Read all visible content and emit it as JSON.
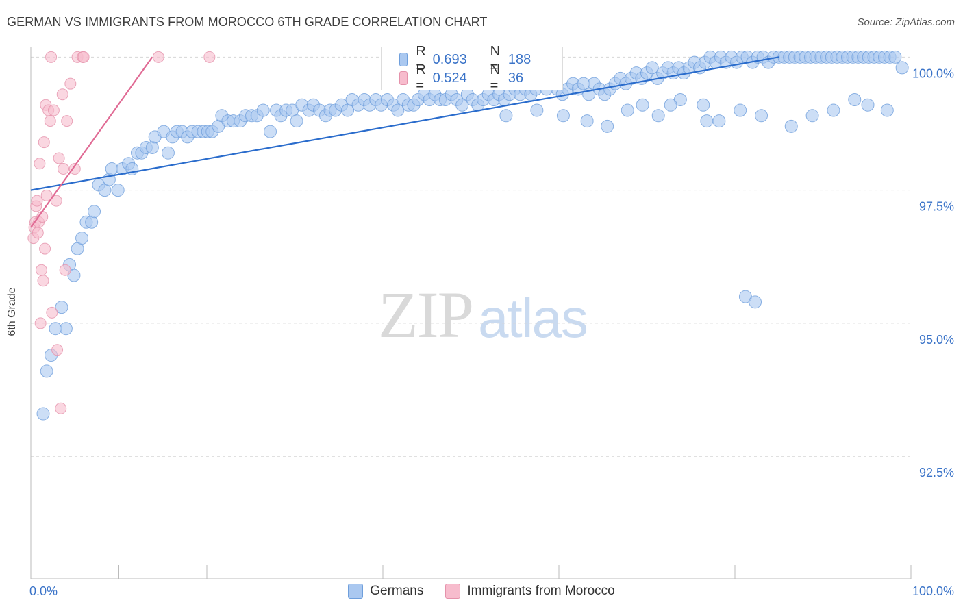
{
  "header": {
    "title": "GERMAN VS IMMIGRANTS FROM MOROCCO 6TH GRADE CORRELATION CHART",
    "source": "Source: ZipAtlas.com"
  },
  "watermark": {
    "part1": "ZIP",
    "part2": "atlas"
  },
  "legend": {
    "r_label": "R =",
    "n_label": "N =",
    "rows": [
      {
        "r": "0.693",
        "n": "188",
        "fill": "#aac8f0",
        "stroke": "#6f9fdc"
      },
      {
        "r": "0.524",
        "n": "36",
        "fill": "#f7bccd",
        "stroke": "#e592ab"
      }
    ]
  },
  "chart_data": {
    "type": "scatter",
    "title": "GERMAN VS IMMIGRANTS FROM MOROCCO 6TH GRADE CORRELATION CHART",
    "xlabel": "",
    "ylabel": "6th Grade",
    "xlim": [
      0,
      100
    ],
    "ylim": [
      90.2,
      100.3
    ],
    "x_tick_labels": [
      "0.0%",
      "100.0%"
    ],
    "y_ticks": [
      92.5,
      95.0,
      97.5,
      100.0
    ],
    "y_tick_labels": [
      "92.5%",
      "95.0%",
      "97.5%",
      "100.0%"
    ],
    "grid": true,
    "legend_position": "top-center",
    "series": [
      {
        "name": "Germans",
        "color": "#6f9fdc",
        "fill": "#aac8f0",
        "line_color": "#2a6ccc",
        "trend": [
          [
            0,
            97.5
          ],
          [
            85,
            100.0
          ]
        ],
        "points": [
          [
            1.4,
            93.3
          ],
          [
            1.8,
            94.1
          ],
          [
            2.3,
            94.4
          ],
          [
            2.8,
            94.9
          ],
          [
            3.5,
            95.3
          ],
          [
            4.0,
            94.9
          ],
          [
            4.4,
            96.1
          ],
          [
            4.9,
            95.9
          ],
          [
            5.3,
            96.4
          ],
          [
            5.8,
            96.6
          ],
          [
            6.3,
            96.9
          ],
          [
            6.9,
            96.9
          ],
          [
            7.2,
            97.1
          ],
          [
            7.7,
            97.6
          ],
          [
            8.4,
            97.5
          ],
          [
            8.9,
            97.7
          ],
          [
            9.2,
            97.9
          ],
          [
            9.9,
            97.5
          ],
          [
            10.4,
            97.9
          ],
          [
            11.1,
            98.0
          ],
          [
            11.5,
            97.9
          ],
          [
            12.1,
            98.2
          ],
          [
            12.6,
            98.2
          ],
          [
            13.1,
            98.3
          ],
          [
            13.8,
            98.3
          ],
          [
            14.1,
            98.5
          ],
          [
            15.1,
            98.6
          ],
          [
            15.6,
            98.2
          ],
          [
            16.1,
            98.5
          ],
          [
            16.6,
            98.6
          ],
          [
            17.2,
            98.6
          ],
          [
            17.8,
            98.5
          ],
          [
            18.3,
            98.6
          ],
          [
            19.0,
            98.6
          ],
          [
            19.6,
            98.6
          ],
          [
            20.1,
            98.6
          ],
          [
            20.6,
            98.6
          ],
          [
            21.3,
            98.7
          ],
          [
            21.7,
            98.9
          ],
          [
            22.4,
            98.8
          ],
          [
            23.0,
            98.8
          ],
          [
            23.8,
            98.8
          ],
          [
            24.4,
            98.9
          ],
          [
            25.1,
            98.9
          ],
          [
            25.7,
            98.9
          ],
          [
            26.4,
            99.0
          ],
          [
            27.2,
            98.6
          ],
          [
            27.9,
            99.0
          ],
          [
            28.4,
            98.9
          ],
          [
            29.0,
            99.0
          ],
          [
            29.7,
            99.0
          ],
          [
            30.2,
            98.8
          ],
          [
            30.8,
            99.1
          ],
          [
            31.6,
            99.0
          ],
          [
            32.1,
            99.1
          ],
          [
            32.8,
            99.0
          ],
          [
            33.5,
            98.9
          ],
          [
            34.0,
            99.0
          ],
          [
            34.6,
            99.0
          ],
          [
            35.3,
            99.1
          ],
          [
            36.0,
            99.0
          ],
          [
            36.5,
            99.2
          ],
          [
            37.2,
            99.1
          ],
          [
            37.9,
            99.2
          ],
          [
            38.5,
            99.1
          ],
          [
            39.2,
            99.2
          ],
          [
            39.8,
            99.1
          ],
          [
            40.5,
            99.2
          ],
          [
            41.2,
            99.1
          ],
          [
            41.7,
            99.0
          ],
          [
            42.3,
            99.2
          ],
          [
            42.9,
            99.1
          ],
          [
            43.5,
            99.1
          ],
          [
            44.0,
            99.2
          ],
          [
            44.7,
            99.3
          ],
          [
            45.3,
            99.2
          ],
          [
            45.9,
            99.3
          ],
          [
            46.5,
            99.2
          ],
          [
            47.1,
            99.2
          ],
          [
            47.8,
            99.3
          ],
          [
            48.4,
            99.2
          ],
          [
            49.0,
            99.1
          ],
          [
            49.6,
            99.3
          ],
          [
            50.2,
            99.2
          ],
          [
            50.8,
            99.1
          ],
          [
            51.4,
            99.2
          ],
          [
            52.0,
            99.3
          ],
          [
            52.6,
            99.2
          ],
          [
            53.2,
            99.3
          ],
          [
            53.8,
            99.2
          ],
          [
            54.4,
            99.3
          ],
          [
            55.0,
            99.4
          ],
          [
            55.6,
            99.3
          ],
          [
            56.2,
            99.4
          ],
          [
            56.8,
            99.3
          ],
          [
            57.4,
            99.4
          ],
          [
            58.0,
            99.5
          ],
          [
            58.6,
            99.4
          ],
          [
            59.2,
            99.5
          ],
          [
            59.8,
            99.4
          ],
          [
            60.4,
            99.3
          ],
          [
            61.0,
            99.4
          ],
          [
            61.6,
            99.5
          ],
          [
            62.2,
            99.4
          ],
          [
            62.8,
            99.5
          ],
          [
            63.4,
            99.3
          ],
          [
            64.0,
            99.5
          ],
          [
            64.6,
            99.4
          ],
          [
            65.2,
            99.3
          ],
          [
            65.8,
            99.4
          ],
          [
            66.4,
            99.5
          ],
          [
            67.0,
            99.6
          ],
          [
            67.6,
            99.5
          ],
          [
            68.2,
            99.6
          ],
          [
            68.8,
            99.7
          ],
          [
            69.4,
            99.6
          ],
          [
            70.0,
            99.7
          ],
          [
            70.6,
            99.8
          ],
          [
            71.2,
            99.6
          ],
          [
            71.8,
            99.7
          ],
          [
            72.4,
            99.8
          ],
          [
            73.0,
            99.7
          ],
          [
            73.6,
            99.8
          ],
          [
            74.2,
            99.7
          ],
          [
            74.8,
            99.8
          ],
          [
            75.4,
            99.9
          ],
          [
            76.0,
            99.8
          ],
          [
            76.6,
            99.9
          ],
          [
            77.2,
            100.0
          ],
          [
            77.8,
            99.9
          ],
          [
            78.4,
            100.0
          ],
          [
            79.0,
            99.9
          ],
          [
            79.6,
            100.0
          ],
          [
            80.2,
            99.9
          ],
          [
            80.8,
            100.0
          ],
          [
            81.4,
            100.0
          ],
          [
            82.0,
            99.9
          ],
          [
            82.6,
            100.0
          ],
          [
            83.2,
            100.0
          ],
          [
            83.8,
            99.9
          ],
          [
            84.4,
            100.0
          ],
          [
            85.0,
            100.0
          ],
          [
            85.6,
            100.0
          ],
          [
            86.2,
            100.0
          ],
          [
            86.8,
            100.0
          ],
          [
            87.4,
            100.0
          ],
          [
            88.0,
            100.0
          ],
          [
            88.6,
            100.0
          ],
          [
            89.2,
            100.0
          ],
          [
            89.8,
            100.0
          ],
          [
            90.4,
            100.0
          ],
          [
            91.0,
            100.0
          ],
          [
            91.6,
            100.0
          ],
          [
            92.2,
            100.0
          ],
          [
            92.8,
            100.0
          ],
          [
            93.4,
            100.0
          ],
          [
            94.0,
            100.0
          ],
          [
            94.6,
            100.0
          ],
          [
            95.2,
            100.0
          ],
          [
            95.8,
            100.0
          ],
          [
            96.4,
            100.0
          ],
          [
            97.0,
            100.0
          ],
          [
            97.6,
            100.0
          ],
          [
            98.2,
            100.0
          ],
          [
            99.0,
            99.8
          ],
          [
            54.0,
            98.9
          ],
          [
            57.5,
            99.0
          ],
          [
            60.5,
            98.9
          ],
          [
            63.2,
            98.8
          ],
          [
            65.5,
            98.7
          ],
          [
            69.5,
            99.1
          ],
          [
            71.3,
            98.9
          ],
          [
            73.8,
            99.2
          ],
          [
            76.4,
            99.1
          ],
          [
            78.2,
            98.8
          ],
          [
            80.6,
            99.0
          ],
          [
            83.0,
            98.9
          ],
          [
            86.4,
            98.7
          ],
          [
            88.8,
            98.9
          ],
          [
            91.2,
            99.0
          ],
          [
            93.6,
            99.2
          ],
          [
            95.1,
            99.1
          ],
          [
            97.3,
            99.0
          ],
          [
            81.2,
            95.5
          ],
          [
            82.3,
            95.4
          ],
          [
            76.8,
            98.8
          ],
          [
            72.7,
            99.1
          ],
          [
            67.8,
            99.0
          ]
        ]
      },
      {
        "name": "Immigrants from Morocco",
        "color": "#e592ab",
        "fill": "#f7bccd",
        "line_color": "#e06a94",
        "trend": [
          [
            0,
            96.8
          ],
          [
            13.8,
            100.0
          ]
        ],
        "points": [
          [
            0.3,
            96.6
          ],
          [
            0.4,
            96.8
          ],
          [
            0.5,
            96.9
          ],
          [
            0.6,
            97.2
          ],
          [
            0.7,
            97.3
          ],
          [
            0.8,
            96.7
          ],
          [
            0.9,
            96.9
          ],
          [
            1.0,
            98.0
          ],
          [
            1.1,
            95.0
          ],
          [
            1.2,
            96.0
          ],
          [
            1.3,
            97.0
          ],
          [
            1.4,
            95.8
          ],
          [
            1.5,
            98.4
          ],
          [
            1.6,
            96.4
          ],
          [
            1.7,
            99.1
          ],
          [
            1.8,
            97.4
          ],
          [
            2.0,
            99.0
          ],
          [
            2.2,
            98.8
          ],
          [
            2.4,
            95.2
          ],
          [
            2.6,
            99.0
          ],
          [
            2.9,
            97.3
          ],
          [
            3.0,
            94.5
          ],
          [
            3.2,
            98.1
          ],
          [
            3.4,
            93.4
          ],
          [
            3.6,
            99.3
          ],
          [
            3.7,
            97.9
          ],
          [
            3.9,
            96.0
          ],
          [
            4.1,
            98.8
          ],
          [
            4.5,
            99.5
          ],
          [
            5.0,
            97.9
          ],
          [
            5.3,
            100.0
          ],
          [
            5.9,
            100.0
          ],
          [
            6.0,
            100.0
          ],
          [
            2.3,
            100.0
          ],
          [
            14.5,
            100.0
          ],
          [
            20.3,
            100.0
          ]
        ]
      }
    ]
  }
}
